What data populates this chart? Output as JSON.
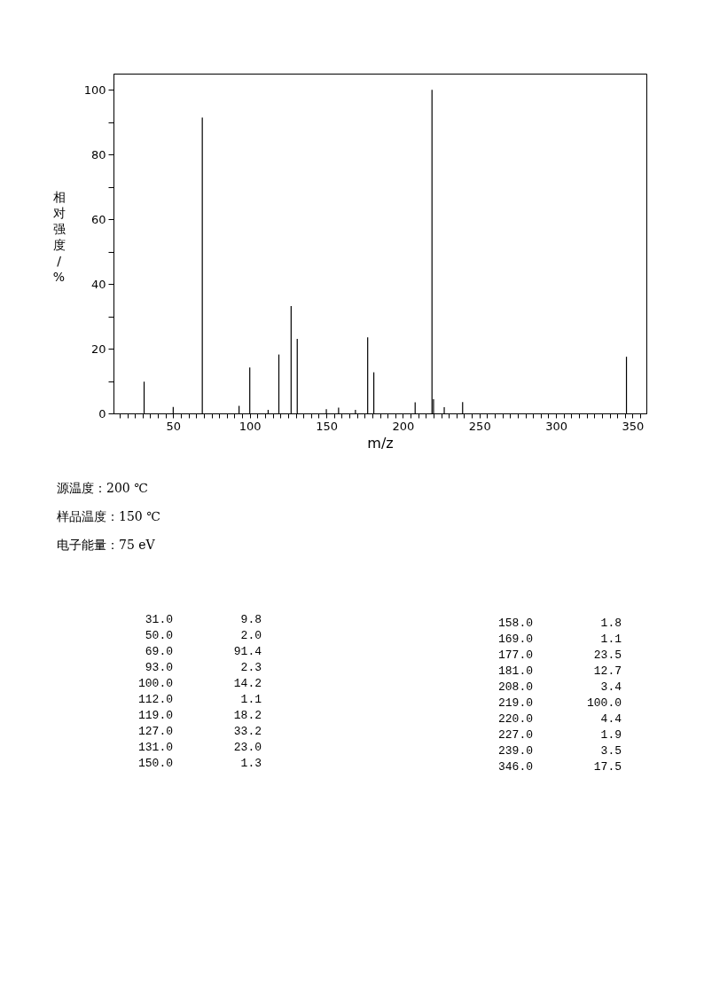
{
  "chart_data": {
    "type": "bar",
    "xlabel": "m/z",
    "ylabel": "相对强度/%",
    "x": [
      31,
      50,
      69,
      93,
      100,
      112,
      119,
      127,
      131,
      150,
      158,
      169,
      177,
      181,
      208,
      219,
      220,
      227,
      239,
      346
    ],
    "values": [
      9.8,
      2.0,
      91.4,
      2.3,
      14.2,
      1.1,
      18.2,
      33.2,
      23.0,
      1.3,
      1.8,
      1.1,
      23.5,
      12.7,
      3.4,
      100.0,
      4.4,
      1.9,
      3.5,
      17.5
    ],
    "color": "#000000",
    "grid": false,
    "legend": false,
    "xlim": [
      11,
      359
    ],
    "ylim": [
      0,
      105
    ],
    "xticks": [
      50,
      100,
      150,
      200,
      250,
      300,
      350,
      {
        "value": 15,
        "label": null
      },
      {
        "value": 20,
        "label": null
      },
      {
        "value": 25,
        "label": null
      },
      {
        "value": 30,
        "label": null
      },
      {
        "value": 35,
        "label": null
      },
      {
        "value": 40,
        "label": null
      },
      {
        "value": 45,
        "label": null
      },
      {
        "value": 55,
        "label": null
      },
      {
        "value": 60,
        "label": null
      },
      {
        "value": 65,
        "label": null
      },
      {
        "value": 70,
        "label": null
      },
      {
        "value": 75,
        "label": null
      },
      {
        "value": 80,
        "label": null
      },
      {
        "value": 85,
        "label": null
      },
      {
        "value": 90,
        "label": null
      },
      {
        "value": 95,
        "label": null
      },
      {
        "value": 105,
        "label": null
      },
      {
        "value": 110,
        "label": null
      },
      {
        "value": 115,
        "label": null
      },
      {
        "value": 120,
        "label": null
      },
      {
        "value": 125,
        "label": null
      },
      {
        "value": 130,
        "label": null
      },
      {
        "value": 135,
        "label": null
      },
      {
        "value": 140,
        "label": null
      },
      {
        "value": 145,
        "label": null
      },
      {
        "value": 155,
        "label": null
      },
      {
        "value": 160,
        "label": null
      },
      {
        "value": 165,
        "label": null
      },
      {
        "value": 170,
        "label": null
      },
      {
        "value": 175,
        "label": null
      },
      {
        "value": 180,
        "label": null
      },
      {
        "value": 185,
        "label": null
      },
      {
        "value": 190,
        "label": null
      },
      {
        "value": 195,
        "label": null
      },
      {
        "value": 205,
        "label": null
      },
      {
        "value": 210,
        "label": null
      },
      {
        "value": 215,
        "label": null
      },
      {
        "value": 220,
        "label": null
      },
      {
        "value": 225,
        "label": null
      },
      {
        "value": 230,
        "label": null
      },
      {
        "value": 235,
        "label": null
      },
      {
        "value": 240,
        "label": null
      },
      {
        "value": 245,
        "label": null
      },
      {
        "value": 255,
        "label": null
      },
      {
        "value": 260,
        "label": null
      },
      {
        "value": 265,
        "label": null
      },
      {
        "value": 270,
        "label": null
      },
      {
        "value": 275,
        "label": null
      },
      {
        "value": 280,
        "label": null
      },
      {
        "value": 285,
        "label": null
      },
      {
        "value": 290,
        "label": null
      },
      {
        "value": 295,
        "label": null
      },
      {
        "value": 305,
        "label": null
      },
      {
        "value": 310,
        "label": null
      },
      {
        "value": 315,
        "label": null
      },
      {
        "value": 320,
        "label": null
      },
      {
        "value": 325,
        "label": null
      },
      {
        "value": 330,
        "label": null
      },
      {
        "value": 335,
        "label": null
      },
      {
        "value": 340,
        "label": null
      },
      {
        "value": 345,
        "label": null
      },
      {
        "value": 355,
        "label": null
      }
    ],
    "yticks": [
      0,
      20,
      40,
      60,
      80,
      100,
      {
        "value": 10,
        "label": null
      },
      {
        "value": 30,
        "label": null
      },
      {
        "value": 50,
        "label": null
      },
      {
        "value": 70,
        "label": null
      },
      {
        "value": 90,
        "label": null
      }
    ],
    "annotations": [
      "源温度：200 ℃",
      "样品温度：150 ℃",
      "电子能量：75 eV",
      "31.0",
      "9.8",
      "50.0",
      "2.0",
      "69.0",
      "91.4",
      "93.0",
      "2.3",
      "100.0",
      "14.2",
      "112.0",
      "1.1",
      "119.0",
      "18.2",
      "127.0",
      "33.2",
      "131.0",
      "23.0",
      "150.0",
      "1.3",
      "158.0",
      "1.8",
      "169.0",
      "1.1",
      "177.0",
      "23.5",
      "181.0",
      "12.7",
      "208.0",
      "3.4",
      "219.0",
      "100.0",
      "220.0",
      "4.4",
      "227.0",
      "1.9",
      "239.0",
      "3.5",
      "346.0",
      "17.5"
    ]
  }
}
